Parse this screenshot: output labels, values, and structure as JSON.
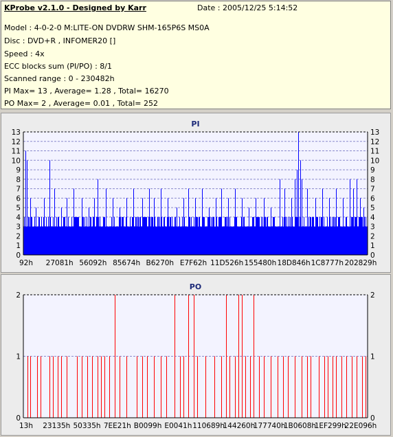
{
  "app": {
    "title": "KProbe v2.1.0 - Designed by Karr",
    "date": "Date : 2005/12/25 5:14:52"
  },
  "info_lines": [
    "Model : 4-0-2-0 M:LITE-ON DVDRW SHM-165P6S MS0A",
    "Disc : DVD+R , INFOMER20 []",
    "Speed : 4x",
    "ECC blocks sum (PI/PO) : 8/1",
    "Scanned range : 0 - 230482h",
    "PI Max= 13 , Average= 1.28 , Total= 16270",
    "PO Max= 2 , Average= 0.01 , Total= 252"
  ],
  "colors": {
    "pi_bar": "#0000ff",
    "po_bar": "#ff0000",
    "plot_bg": "#f3f3ff",
    "grid": "#8a8acc"
  },
  "chart_data": [
    {
      "type": "bar",
      "title": "PI",
      "ylim": [
        0,
        13
      ],
      "y_ticks": [
        0,
        1,
        2,
        3,
        4,
        5,
        6,
        7,
        8,
        9,
        10,
        11,
        12,
        13
      ],
      "x_tick_labels": [
        "92h",
        "27081h",
        "56092h",
        "85674h",
        "B6270h",
        "E7F62h",
        "11D526h",
        "155480h",
        "18D846h",
        "1C8777h",
        "202829h"
      ],
      "grid": "horizontal-dashed",
      "baseline_level": 3,
      "spikes": [
        {
          "pos": 0.005,
          "value": 11
        },
        {
          "pos": 0.01,
          "value": 10
        },
        {
          "pos": 0.02,
          "value": 6
        },
        {
          "pos": 0.035,
          "value": 5
        },
        {
          "pos": 0.06,
          "value": 6
        },
        {
          "pos": 0.075,
          "value": 10
        },
        {
          "pos": 0.09,
          "value": 7
        },
        {
          "pos": 0.11,
          "value": 5
        },
        {
          "pos": 0.125,
          "value": 6
        },
        {
          "pos": 0.145,
          "value": 7
        },
        {
          "pos": 0.17,
          "value": 6
        },
        {
          "pos": 0.19,
          "value": 5
        },
        {
          "pos": 0.205,
          "value": 6
        },
        {
          "pos": 0.215,
          "value": 8
        },
        {
          "pos": 0.24,
          "value": 7
        },
        {
          "pos": 0.26,
          "value": 6
        },
        {
          "pos": 0.28,
          "value": 5
        },
        {
          "pos": 0.3,
          "value": 6
        },
        {
          "pos": 0.32,
          "value": 7
        },
        {
          "pos": 0.345,
          "value": 6
        },
        {
          "pos": 0.365,
          "value": 7
        },
        {
          "pos": 0.38,
          "value": 6
        },
        {
          "pos": 0.4,
          "value": 7
        },
        {
          "pos": 0.42,
          "value": 6
        },
        {
          "pos": 0.445,
          "value": 5
        },
        {
          "pos": 0.465,
          "value": 6
        },
        {
          "pos": 0.48,
          "value": 7
        },
        {
          "pos": 0.5,
          "value": 6
        },
        {
          "pos": 0.52,
          "value": 7
        },
        {
          "pos": 0.54,
          "value": 5
        },
        {
          "pos": 0.56,
          "value": 6
        },
        {
          "pos": 0.575,
          "value": 7
        },
        {
          "pos": 0.595,
          "value": 6
        },
        {
          "pos": 0.615,
          "value": 7
        },
        {
          "pos": 0.635,
          "value": 6
        },
        {
          "pos": 0.655,
          "value": 5
        },
        {
          "pos": 0.675,
          "value": 6
        },
        {
          "pos": 0.7,
          "value": 6
        },
        {
          "pos": 0.72,
          "value": 5
        },
        {
          "pos": 0.745,
          "value": 8
        },
        {
          "pos": 0.76,
          "value": 7
        },
        {
          "pos": 0.78,
          "value": 6
        },
        {
          "pos": 0.79,
          "value": 8
        },
        {
          "pos": 0.795,
          "value": 9
        },
        {
          "pos": 0.8,
          "value": 13
        },
        {
          "pos": 0.805,
          "value": 10
        },
        {
          "pos": 0.81,
          "value": 8
        },
        {
          "pos": 0.825,
          "value": 7
        },
        {
          "pos": 0.85,
          "value": 6
        },
        {
          "pos": 0.87,
          "value": 7
        },
        {
          "pos": 0.89,
          "value": 6
        },
        {
          "pos": 0.91,
          "value": 7
        },
        {
          "pos": 0.93,
          "value": 6
        },
        {
          "pos": 0.95,
          "value": 8
        },
        {
          "pos": 0.96,
          "value": 7
        },
        {
          "pos": 0.97,
          "value": 8
        },
        {
          "pos": 0.98,
          "value": 6
        },
        {
          "pos": 0.99,
          "value": 5
        }
      ]
    },
    {
      "type": "bar",
      "title": "PO",
      "ylim": [
        0,
        2
      ],
      "y_ticks": [
        0,
        1,
        2
      ],
      "x_tick_labels": [
        "13h",
        "23135h",
        "50335h",
        "7EE21h",
        "B0099h",
        "E0041h",
        "110689h",
        "144260h",
        "177740h",
        "1B0608h",
        "1EF299h",
        "22E096h"
      ],
      "grid": "horizontal-dashed",
      "spikes": [
        {
          "pos": 0.012,
          "value": 1
        },
        {
          "pos": 0.02,
          "value": 1
        },
        {
          "pos": 0.04,
          "value": 1
        },
        {
          "pos": 0.05,
          "value": 1
        },
        {
          "pos": 0.075,
          "value": 1
        },
        {
          "pos": 0.085,
          "value": 1
        },
        {
          "pos": 0.1,
          "value": 1
        },
        {
          "pos": 0.11,
          "value": 1
        },
        {
          "pos": 0.125,
          "value": 1
        },
        {
          "pos": 0.155,
          "value": 1
        },
        {
          "pos": 0.17,
          "value": 1
        },
        {
          "pos": 0.185,
          "value": 1
        },
        {
          "pos": 0.2,
          "value": 1
        },
        {
          "pos": 0.215,
          "value": 1
        },
        {
          "pos": 0.225,
          "value": 1
        },
        {
          "pos": 0.235,
          "value": 1
        },
        {
          "pos": 0.25,
          "value": 1
        },
        {
          "pos": 0.265,
          "value": 2
        },
        {
          "pos": 0.28,
          "value": 1
        },
        {
          "pos": 0.3,
          "value": 1
        },
        {
          "pos": 0.33,
          "value": 1
        },
        {
          "pos": 0.345,
          "value": 1
        },
        {
          "pos": 0.36,
          "value": 1
        },
        {
          "pos": 0.38,
          "value": 1
        },
        {
          "pos": 0.4,
          "value": 1
        },
        {
          "pos": 0.415,
          "value": 1
        },
        {
          "pos": 0.44,
          "value": 2
        },
        {
          "pos": 0.455,
          "value": 1
        },
        {
          "pos": 0.465,
          "value": 1
        },
        {
          "pos": 0.48,
          "value": 2
        },
        {
          "pos": 0.495,
          "value": 2
        },
        {
          "pos": 0.505,
          "value": 1
        },
        {
          "pos": 0.53,
          "value": 1
        },
        {
          "pos": 0.555,
          "value": 1
        },
        {
          "pos": 0.575,
          "value": 1
        },
        {
          "pos": 0.59,
          "value": 2
        },
        {
          "pos": 0.6,
          "value": 1
        },
        {
          "pos": 0.615,
          "value": 1
        },
        {
          "pos": 0.625,
          "value": 2
        },
        {
          "pos": 0.635,
          "value": 2
        },
        {
          "pos": 0.645,
          "value": 1
        },
        {
          "pos": 0.66,
          "value": 1
        },
        {
          "pos": 0.67,
          "value": 2
        },
        {
          "pos": 0.685,
          "value": 1
        },
        {
          "pos": 0.7,
          "value": 1
        },
        {
          "pos": 0.72,
          "value": 1
        },
        {
          "pos": 0.74,
          "value": 1
        },
        {
          "pos": 0.755,
          "value": 1
        },
        {
          "pos": 0.77,
          "value": 1
        },
        {
          "pos": 0.79,
          "value": 1
        },
        {
          "pos": 0.81,
          "value": 1
        },
        {
          "pos": 0.825,
          "value": 1
        },
        {
          "pos": 0.835,
          "value": 1
        },
        {
          "pos": 0.86,
          "value": 1
        },
        {
          "pos": 0.875,
          "value": 1
        },
        {
          "pos": 0.885,
          "value": 1
        },
        {
          "pos": 0.9,
          "value": 1
        },
        {
          "pos": 0.91,
          "value": 1
        },
        {
          "pos": 0.925,
          "value": 1
        },
        {
          "pos": 0.94,
          "value": 1
        },
        {
          "pos": 0.955,
          "value": 1
        },
        {
          "pos": 0.97,
          "value": 1
        },
        {
          "pos": 0.985,
          "value": 1
        },
        {
          "pos": 0.995,
          "value": 1
        }
      ]
    }
  ]
}
